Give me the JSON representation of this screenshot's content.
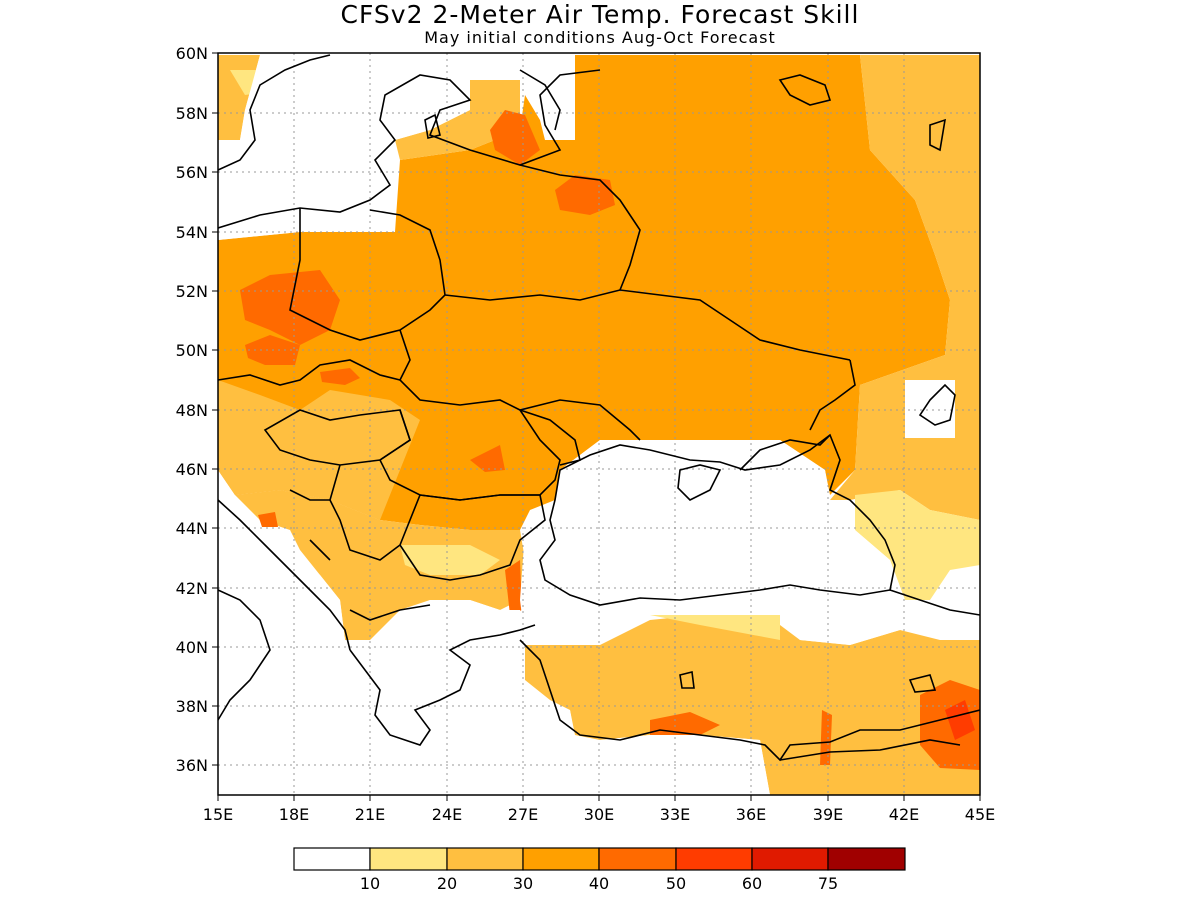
{
  "title": "CFSv2 2-Meter Air Temp. Forecast Skill",
  "subtitle": "May initial conditions   Aug-Oct Forecast",
  "map": {
    "lon_range": [
      15,
      45
    ],
    "lat_range": [
      35,
      60
    ],
    "lat_labels": [
      "60N",
      "58N",
      "56N",
      "54N",
      "52N",
      "50N",
      "48N",
      "46N",
      "44N",
      "42N",
      "40N",
      "38N",
      "36N"
    ],
    "lon_labels": [
      "15E",
      "18E",
      "21E",
      "24E",
      "27E",
      "30E",
      "33E",
      "36E",
      "39E",
      "42E",
      "45E"
    ]
  },
  "legend": {
    "bins": [
      {
        "color": "#ffffff"
      },
      {
        "color": "#ffe680"
      },
      {
        "color": "#ffbf40"
      },
      {
        "color": "#ffa000"
      },
      {
        "color": "#ff6a00"
      },
      {
        "color": "#ff3c00"
      },
      {
        "color": "#e01a00"
      },
      {
        "color": "#a00000"
      }
    ],
    "labels": [
      "10",
      "20",
      "30",
      "40",
      "50",
      "60",
      "75"
    ]
  },
  "colors": {
    "c10_20": "#ffe680",
    "c20_30": "#ffbf40",
    "c30_40": "#ffa000",
    "c40_50": "#ff6a00",
    "c50_60": "#ff3c00"
  }
}
